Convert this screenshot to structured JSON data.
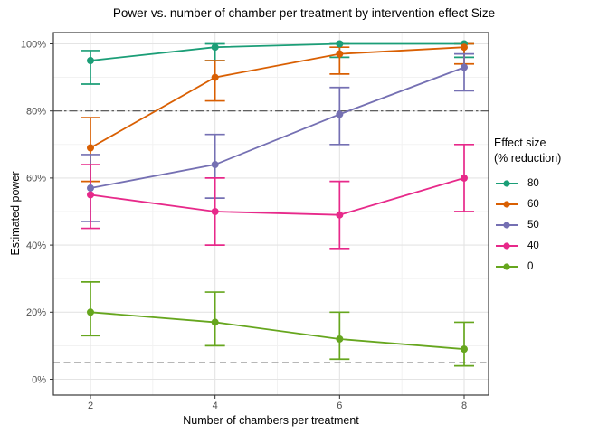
{
  "chart_data": {
    "type": "line",
    "title": "Power vs. number of chamber per treatment by intervention effect Size",
    "xlabel": "Number of chambers per treatment",
    "ylabel": "Estimated power",
    "x": [
      2,
      4,
      6,
      8
    ],
    "ylim": [
      0,
      100
    ],
    "grid": true,
    "legend_position": "right",
    "legend_title_line1": "Effect size",
    "legend_title_line2": "(% reduction)",
    "x_ticks": {
      "values": [
        2,
        4,
        6,
        8
      ],
      "labels": [
        "2",
        "4",
        "6",
        "8"
      ],
      "minor": [
        3,
        5,
        7
      ]
    },
    "y_ticks": {
      "values": [
        0,
        20,
        40,
        60,
        80,
        100
      ],
      "labels": [
        "0%",
        "20%",
        "40%",
        "60%",
        "80%",
        "100%"
      ],
      "minor": [
        10,
        30,
        50,
        70,
        90
      ]
    },
    "reference_lines": [
      {
        "y": 80,
        "style": "dashdot",
        "color": "#4d4d4d"
      },
      {
        "y": 5,
        "style": "dashed",
        "color": "#8c8c8c"
      }
    ],
    "series": [
      {
        "name": "80",
        "color": "#1B9E77",
        "values": [
          95,
          99,
          100,
          100
        ],
        "ci_low": [
          88,
          95,
          96,
          96
        ],
        "ci_high": [
          98,
          100,
          100,
          100
        ]
      },
      {
        "name": "60",
        "color": "#D95F02",
        "values": [
          69,
          90,
          97,
          99
        ],
        "ci_low": [
          59,
          83,
          91,
          94
        ],
        "ci_high": [
          78,
          95,
          99,
          100
        ]
      },
      {
        "name": "50",
        "color": "#7570B3",
        "values": [
          57,
          64,
          79,
          93
        ],
        "ci_low": [
          47,
          54,
          70,
          86
        ],
        "ci_high": [
          67,
          73,
          87,
          97
        ]
      },
      {
        "name": "40",
        "color": "#E7298A",
        "values": [
          55,
          50,
          49,
          60
        ],
        "ci_low": [
          45,
          40,
          39,
          50
        ],
        "ci_high": [
          64,
          60,
          59,
          70
        ]
      },
      {
        "name": "0",
        "color": "#66A61E",
        "values": [
          20,
          17,
          12,
          9
        ],
        "ci_low": [
          13,
          10,
          6,
          4
        ],
        "ci_high": [
          29,
          26,
          20,
          17
        ]
      }
    ]
  },
  "panel": {
    "background": "#ffffff",
    "border_color": "#3a3a3a",
    "grid_major": "#e4e4e4",
    "grid_minor": "#f1f1f1",
    "tick_color": "#333333",
    "tick_label_color": "#4d4d4d"
  }
}
